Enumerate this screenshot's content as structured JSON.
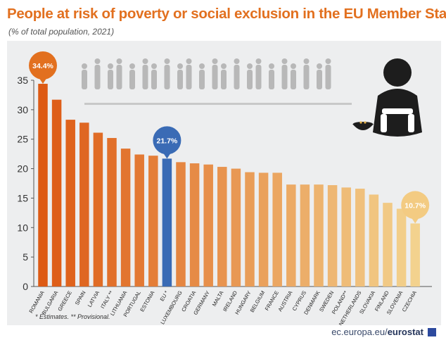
{
  "header": {
    "title": "People at risk of poverty or social exclusion in the EU Member States",
    "subtitle": "(% of total population, 2021)"
  },
  "footnote": "* Estimates. ** Provisional.",
  "source": {
    "domain": "ec.europa.eu/",
    "brand": "eurostat"
  },
  "chart_data": {
    "type": "bar",
    "title": "People at risk of poverty or social exclusion in the EU Member States",
    "subtitle": "(% of total population, 2021)",
    "xlabel": "",
    "ylabel": "",
    "ylim": [
      0,
      35
    ],
    "yticks": [
      0,
      5,
      10,
      15,
      20,
      25,
      30,
      35
    ],
    "grid": false,
    "legend": "none",
    "categories": [
      "ROMANIA",
      "BULGARIA",
      "GREECE",
      "SPAIN",
      "LATVIA",
      "ITALY **",
      "LITHUANIA",
      "PORTUGAL",
      "ESTONIA",
      "EU *",
      "LUXEMBOURG",
      "CROATIA",
      "GERMANY",
      "MALTA",
      "IRELAND",
      "HUNGARY",
      "BELGIUM",
      "FRANCE",
      "AUSTRIA",
      "CYPRUS",
      "DENMARK",
      "SWEDEN",
      "POLAND**",
      "NETHERLANDS",
      "SLOVAKIA",
      "FINLAND",
      "SLOVENIA",
      "CZECHIA"
    ],
    "values": [
      34.4,
      31.7,
      28.3,
      27.8,
      26.1,
      25.2,
      23.4,
      22.4,
      22.2,
      21.7,
      21.1,
      20.9,
      20.7,
      20.3,
      20.0,
      19.4,
      19.3,
      19.3,
      17.3,
      17.3,
      17.3,
      17.2,
      16.8,
      16.6,
      15.6,
      14.2,
      13.2,
      10.7
    ],
    "callouts": [
      {
        "category": "ROMANIA",
        "label": "34.4%",
        "color": "#e2701f"
      },
      {
        "category": "EU *",
        "label": "21.7%",
        "color": "#3a6bb5"
      },
      {
        "category": "CZECHIA",
        "label": "10.7%",
        "color": "#f3cb82"
      }
    ],
    "colors": {
      "high": "#dd5a14",
      "low": "#f3d28e",
      "highlight": "#3a6bb5",
      "axis": "#555555"
    }
  }
}
